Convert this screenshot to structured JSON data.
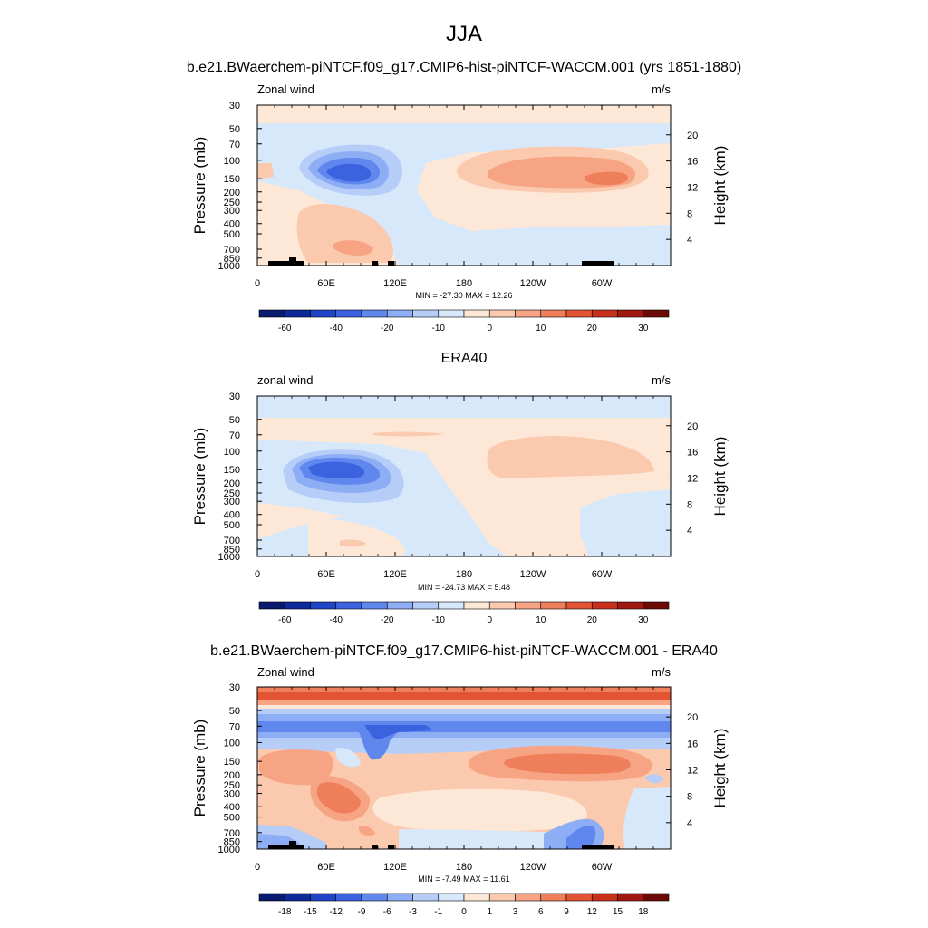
{
  "figure": {
    "title": "JJA",
    "panels": [
      {
        "title": "b.e21.BWaerchem-piNTCF.f09_g17.CMIP6-hist-piNTCF-WACCM.001 (yrs 1851-1880)",
        "left_label": "Zonal wind",
        "right_label": "m/s",
        "stats": "MIN = -27.30  MAX =  12.26"
      },
      {
        "title": "ERA40",
        "left_label": "zonal wind",
        "right_label": "m/s",
        "stats": "MIN = -24.73  MAX =   5.48"
      },
      {
        "title": "b.e21.BWaerchem-piNTCF.f09_g17.CMIP6-hist-piNTCF-WACCM.001 - ERA40",
        "left_label": "Zonal wind",
        "right_label": "m/s",
        "stats": "MIN =  -7.49  MAX =  11.61"
      }
    ],
    "y_left_label": "Pressure (mb)",
    "y_right_label": "Height (km)",
    "pressure_ticks": [
      "30",
      "50",
      "70",
      "100",
      "150",
      "200",
      "250",
      "300",
      "400",
      "500",
      "700",
      "850",
      "1000"
    ],
    "height_ticks": [
      "20",
      "16",
      "12",
      "8",
      "4"
    ],
    "lon_ticks": [
      "0",
      "60E",
      "120E",
      "180",
      "120W",
      "60W"
    ],
    "colorbar_abs": [
      "-60",
      "-40",
      "-20",
      "-10",
      "0",
      "10",
      "20",
      "30"
    ],
    "colorbar_diff": [
      "-18",
      "-15",
      "-12",
      "-9",
      "-6",
      "-3",
      "-1",
      "0",
      "1",
      "3",
      "6",
      "9",
      "12",
      "15",
      "18"
    ],
    "colors": {
      "blues": [
        "#0a1a6e",
        "#0d2a9a",
        "#1f44c8",
        "#3b63e0",
        "#6087ee",
        "#8daef4",
        "#b6cdf8",
        "#d8e8fb"
      ],
      "reds": [
        "#fde7d6",
        "#fbc9ae",
        "#f6a483",
        "#ef7e5a",
        "#e35434",
        "#c8301c",
        "#a01810",
        "#6e0a06"
      ]
    }
  },
  "chart_data": [
    {
      "type": "heatmap",
      "title": "b.e21.BWaerchem-piNTCF.f09_g17.CMIP6-hist-piNTCF-WACCM.001 (yrs 1851-1880)",
      "subtitle": "JJA",
      "xlabel": "",
      "ylabel": "Pressure (mb)",
      "ylabel_right": "Height (km)",
      "x_ticks": [
        "0",
        "60E",
        "120E",
        "180",
        "120W",
        "60W"
      ],
      "y_ticks": [
        30,
        50,
        70,
        100,
        150,
        200,
        250,
        300,
        400,
        500,
        700,
        850,
        1000
      ],
      "y_scale": "log-pressure",
      "min": -27.3,
      "max": 12.26,
      "units": "m/s",
      "levels": [
        -60,
        -40,
        -20,
        -10,
        0,
        10,
        20,
        30
      ]
    },
    {
      "type": "heatmap",
      "title": "ERA40",
      "xlabel": "",
      "ylabel": "Pressure (mb)",
      "ylabel_right": "Height (km)",
      "x_ticks": [
        "0",
        "60E",
        "120E",
        "180",
        "120W",
        "60W"
      ],
      "y_ticks": [
        30,
        50,
        70,
        100,
        150,
        200,
        250,
        300,
        400,
        500,
        700,
        850,
        1000
      ],
      "y_scale": "log-pressure",
      "min": -24.73,
      "max": 5.48,
      "units": "m/s",
      "levels": [
        -60,
        -40,
        -20,
        -10,
        0,
        10,
        20,
        30
      ]
    },
    {
      "type": "heatmap",
      "title": "b.e21.BWaerchem-piNTCF.f09_g17.CMIP6-hist-piNTCF-WACCM.001 - ERA40",
      "xlabel": "",
      "ylabel": "Pressure (mb)",
      "ylabel_right": "Height (km)",
      "x_ticks": [
        "0",
        "60E",
        "120E",
        "180",
        "120W",
        "60W"
      ],
      "y_ticks": [
        30,
        50,
        70,
        100,
        150,
        200,
        250,
        300,
        400,
        500,
        700,
        850,
        1000
      ],
      "y_scale": "log-pressure",
      "min": -7.49,
      "max": 11.61,
      "units": "m/s",
      "levels": [
        -18,
        -15,
        -12,
        -9,
        -6,
        -3,
        -1,
        0,
        1,
        3,
        6,
        9,
        12,
        15,
        18
      ]
    }
  ]
}
